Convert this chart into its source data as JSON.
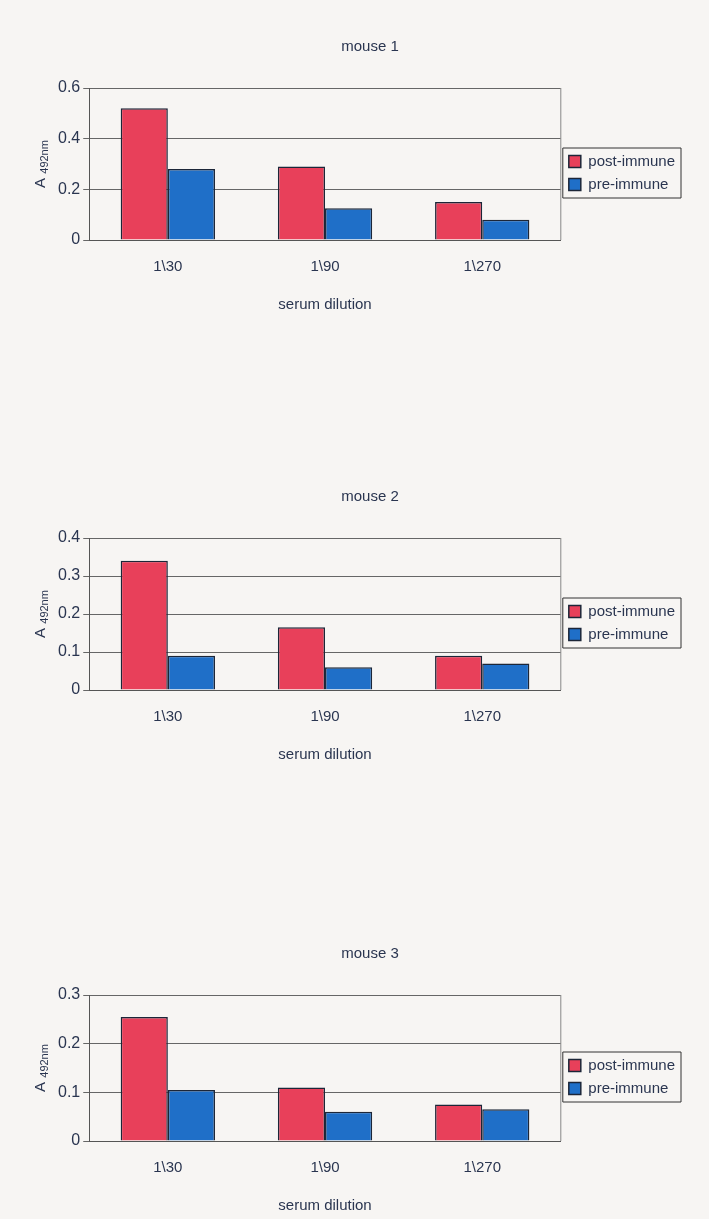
{
  "chart_data": [
    {
      "type": "bar",
      "title": "mouse 1",
      "xlabel": "serum dilution",
      "ylabel": "A $_{492nm}$",
      "categories": [
        "1\\30",
        "1\\90",
        "1\\270"
      ],
      "series": [
        {
          "name": "post-immune",
          "color": "#e8405a",
          "values": [
            0.52,
            0.29,
            0.15
          ]
        },
        {
          "name": "pre-immune",
          "color": "#1f6fc8",
          "values": [
            0.28,
            0.125,
            0.08
          ]
        }
      ],
      "ylim": [
        0,
        0.6
      ],
      "yticks": [
        0,
        0.2,
        0.4,
        0.6
      ],
      "grid": "y",
      "legend": "right"
    },
    {
      "type": "bar",
      "title": "mouse 2",
      "xlabel": "serum dilution",
      "ylabel": "A $_{492nm}$",
      "categories": [
        "1\\30",
        "1\\90",
        "1\\270"
      ],
      "series": [
        {
          "name": "post-immune",
          "color": "#e8405a",
          "values": [
            0.34,
            0.165,
            0.09
          ]
        },
        {
          "name": "pre-immune",
          "color": "#1f6fc8",
          "values": [
            0.09,
            0.06,
            0.07
          ]
        }
      ],
      "ylim": [
        0,
        0.4
      ],
      "yticks": [
        0,
        0.1,
        0.2,
        0.3,
        0.4
      ],
      "grid": "y",
      "legend": "right"
    },
    {
      "type": "bar",
      "title": "mouse 3",
      "xlabel": "serum dilution",
      "ylabel": "A $_{492nm}$",
      "categories": [
        "1\\30",
        "1\\90",
        "1\\270"
      ],
      "series": [
        {
          "name": "post-immune",
          "color": "#e8405a",
          "values": [
            0.255,
            0.11,
            0.075
          ]
        },
        {
          "name": "pre-immune",
          "color": "#1f6fc8",
          "values": [
            0.105,
            0.06,
            0.065
          ]
        }
      ],
      "ylim": [
        0,
        0.3
      ],
      "yticks": [
        0,
        0.1,
        0.2,
        0.3
      ],
      "grid": "y",
      "legend": "right"
    }
  ]
}
